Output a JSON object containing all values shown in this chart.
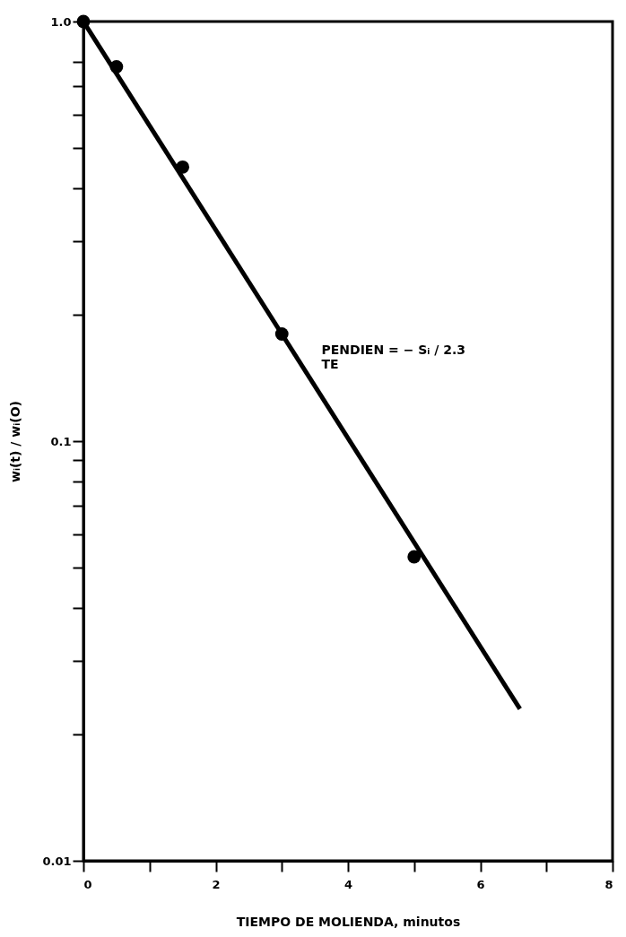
{
  "chart_data": {
    "type": "scatter",
    "xlabel": "TIEMPO DE MOLIENDA,  minutos",
    "ylabel": "wᵢ(t) / wᵢ(O)",
    "log": "y",
    "grid": false,
    "marker": "circle",
    "line_style": "solid",
    "xlim": [
      0,
      8
    ],
    "xticks": [
      0,
      {
        "value": 1,
        "label": null
      },
      2,
      {
        "value": 3,
        "label": null
      },
      4,
      {
        "value": 5,
        "label": null
      },
      6,
      {
        "value": 7,
        "label": null
      },
      8
    ],
    "ylim": [
      0.01,
      1
    ],
    "yticks": [
      0.01,
      {
        "value": 0.02,
        "label": null
      },
      {
        "value": 0.03,
        "label": null
      },
      {
        "value": 0.04,
        "label": null
      },
      {
        "value": 0.05,
        "label": null
      },
      {
        "value": 0.06,
        "label": null
      },
      {
        "value": 0.07,
        "label": null
      },
      {
        "value": 0.08,
        "label": null
      },
      {
        "value": 0.09,
        "label": null
      },
      0.1,
      {
        "value": 0.2,
        "label": null
      },
      {
        "value": 0.3,
        "label": null
      },
      {
        "value": 0.4,
        "label": null
      },
      {
        "value": 0.5,
        "label": null
      },
      {
        "value": 0.6,
        "label": null
      },
      {
        "value": 0.7,
        "label": null
      },
      {
        "value": 0.8,
        "label": null
      },
      {
        "value": 1,
        "label": "1.0"
      }
    ],
    "series": [
      {
        "type": "line",
        "marker": "none",
        "color": "#000000",
        "x": [
          0,
          6.6
        ],
        "values": [
          1,
          0.023
        ]
      },
      {
        "color": "#000000",
        "x": [
          0,
          0.5,
          1.5,
          3,
          5
        ],
        "values": [
          1,
          0.78,
          0.45,
          0.18,
          0.053
        ]
      }
    ],
    "annotations": [
      "PENDIEN = − Sᵢ / 2.3\nTE"
    ]
  }
}
